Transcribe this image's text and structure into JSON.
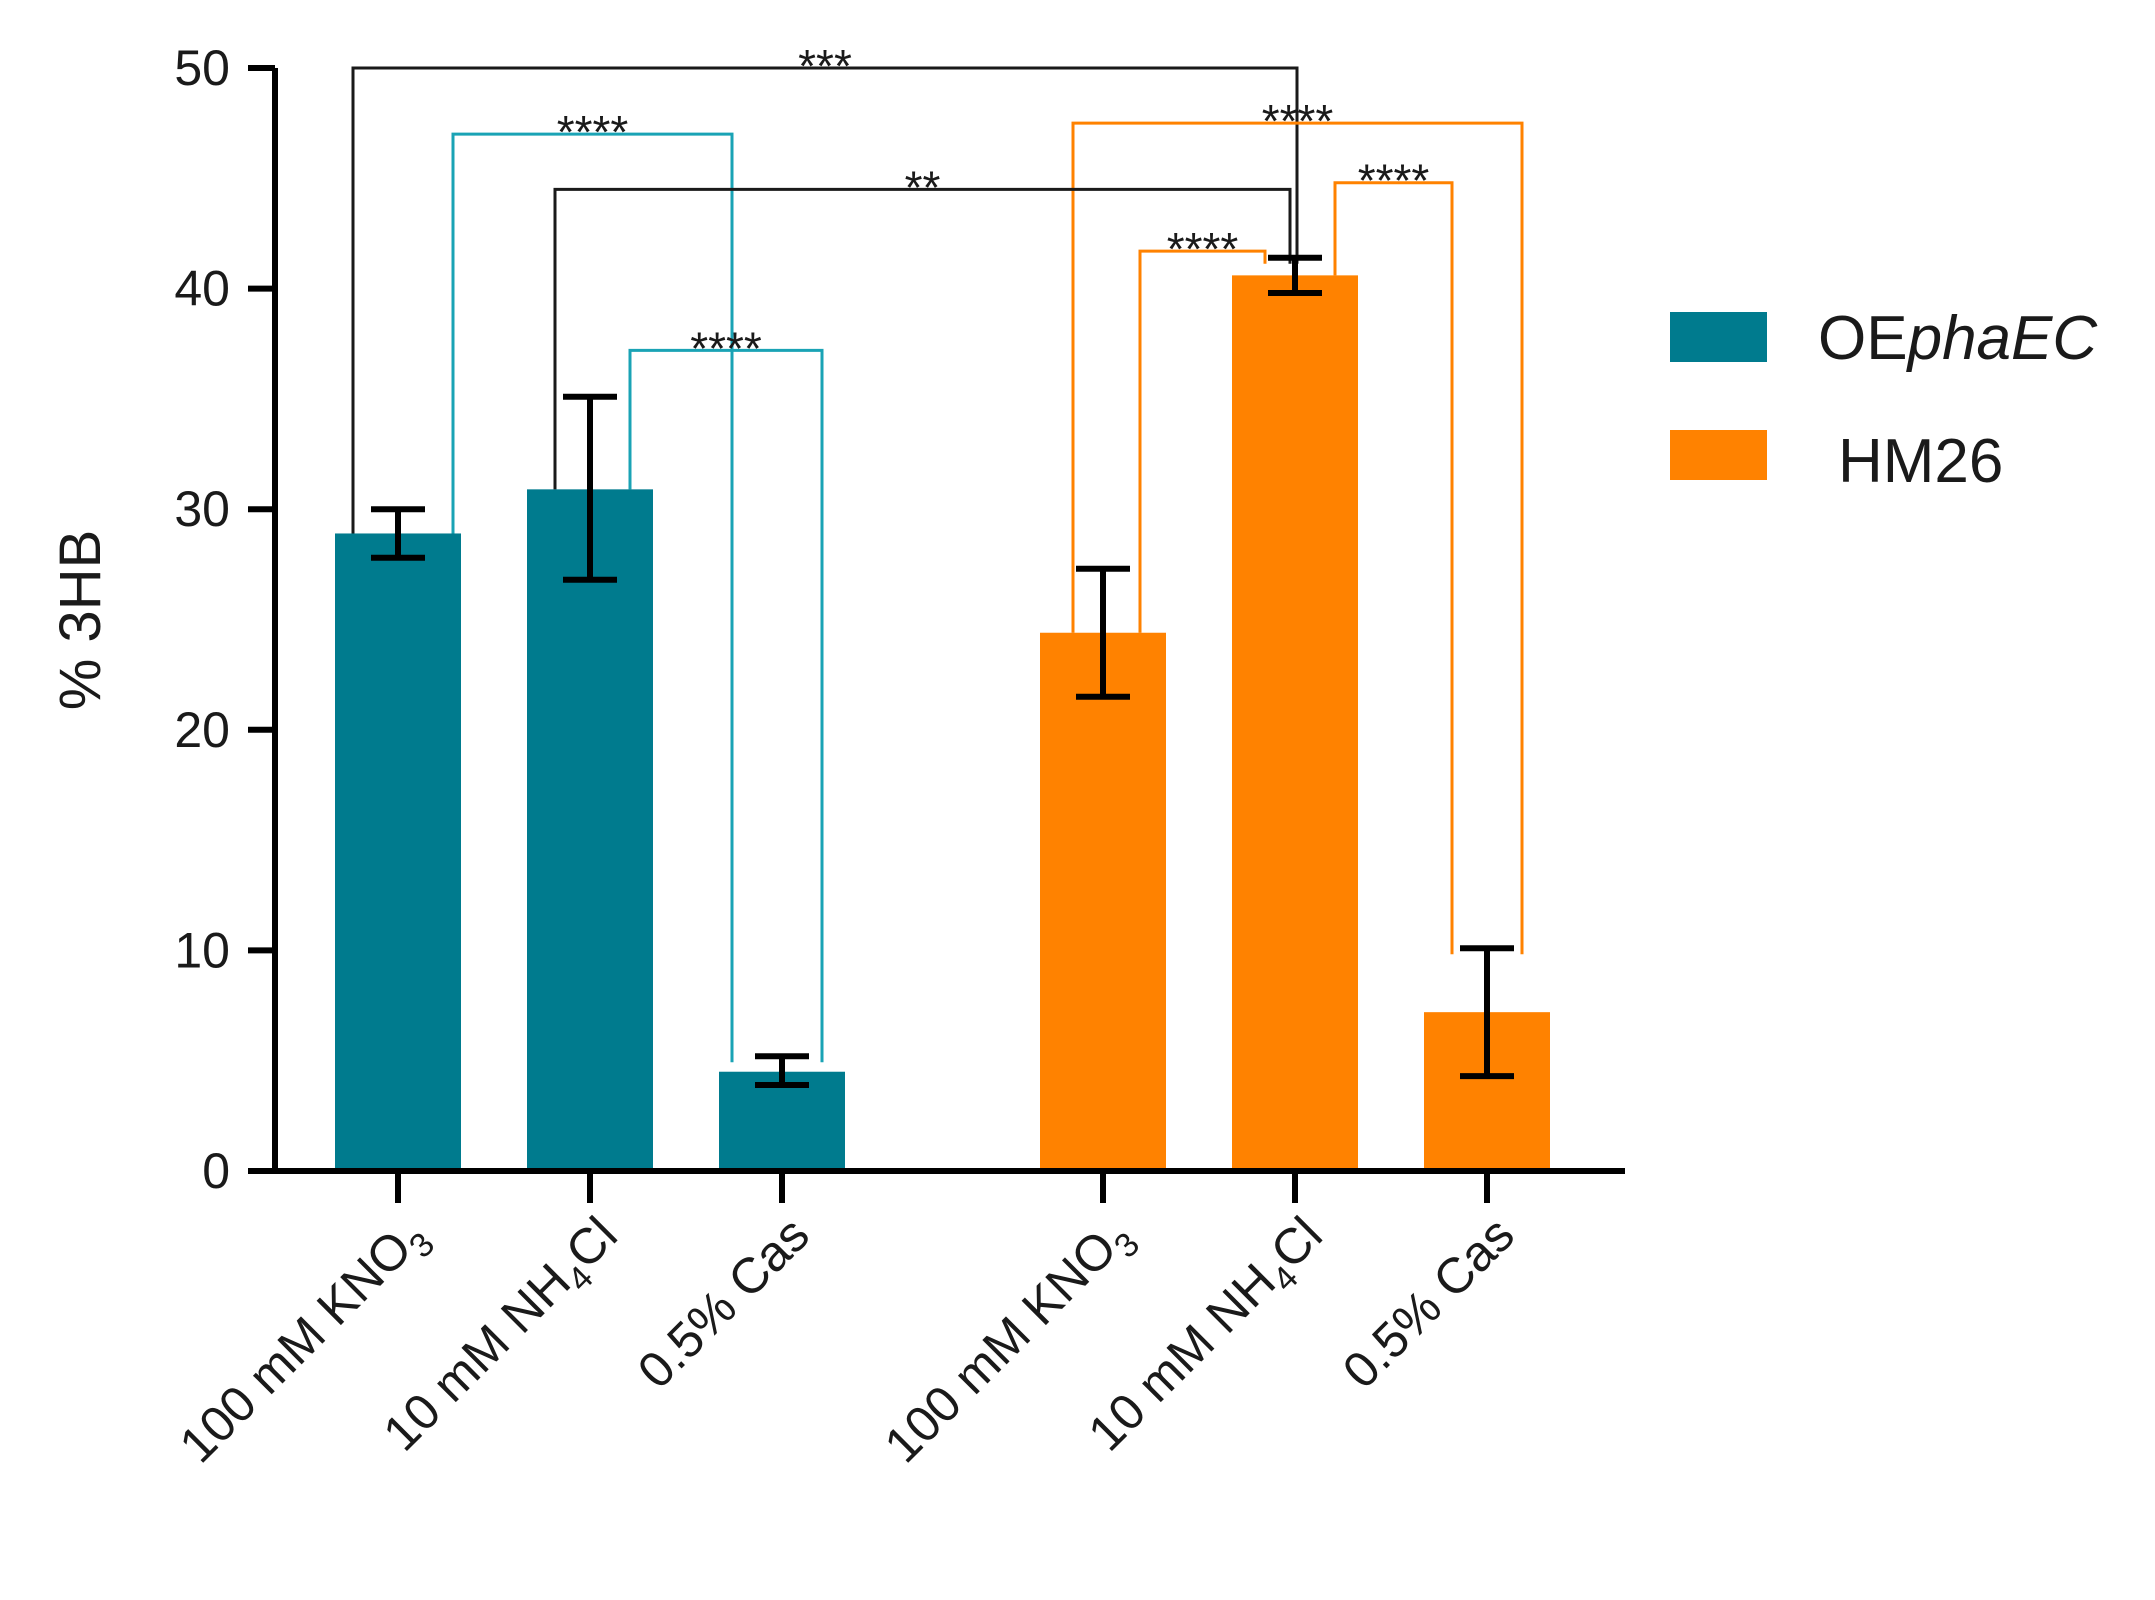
{
  "chart_data": {
    "type": "bar",
    "title": "",
    "xlabel": "",
    "ylabel": "% 3HB",
    "ylim": [
      0,
      50
    ],
    "yticks": [
      "0",
      "10",
      "20",
      "30",
      "40",
      "50"
    ],
    "grid": false,
    "legend_position": "right",
    "series": [
      {
        "name": "OEphaEC",
        "name_plain": "OE",
        "name_italic": "phaEC",
        "color": "#007b8e",
        "bracket_color": "#1aa3b5",
        "categories": [
          {
            "pre": "100 mM KNO",
            "sub": "3",
            "post": ""
          },
          {
            "pre": "10 mM NH",
            "sub": "4",
            "post": "Cl"
          },
          {
            "pre": "0.5% Cas",
            "sub": "",
            "post": ""
          }
        ],
        "values": [
          28.9,
          30.9,
          4.5
        ],
        "err_low": [
          27.8,
          26.8,
          3.9
        ],
        "err_high": [
          30.0,
          35.1,
          5.2
        ]
      },
      {
        "name": "HM26",
        "name_plain": "HM26",
        "name_italic": "",
        "color": "#ff8200",
        "bracket_color": "#ff8200",
        "categories": [
          {
            "pre": "100 mM KNO",
            "sub": "3",
            "post": ""
          },
          {
            "pre": "10 mM NH",
            "sub": "4",
            "post": "Cl"
          },
          {
            "pre": "0.5% Cas",
            "sub": "",
            "post": ""
          }
        ],
        "values": [
          24.4,
          40.6,
          7.2
        ],
        "err_low": [
          21.5,
          39.8,
          4.3
        ],
        "err_high": [
          27.3,
          41.4,
          10.1
        ]
      }
    ],
    "significance": [
      {
        "from": 0,
        "to": 4,
        "level": 50,
        "stars": "***",
        "color": "#1a1a1a"
      },
      {
        "from": 0,
        "to": 2,
        "level": 47,
        "stars": "****",
        "color": "#1aa3b5"
      },
      {
        "from": 3,
        "to": 5,
        "level": 47.5,
        "stars": "****",
        "color": "#ff8200"
      },
      {
        "from": 1,
        "to": 4,
        "level": 44.5,
        "stars": "**",
        "color": "#1a1a1a"
      },
      {
        "from": 4,
        "to": 5,
        "level": 44.8,
        "stars": "****",
        "color": "#ff8200"
      },
      {
        "from": 3,
        "to": 4,
        "level": 41.7,
        "stars": "****",
        "color": "#ff8200"
      },
      {
        "from": 1,
        "to": 2,
        "level": 37.2,
        "stars": "****",
        "color": "#1aa3b5"
      }
    ]
  }
}
